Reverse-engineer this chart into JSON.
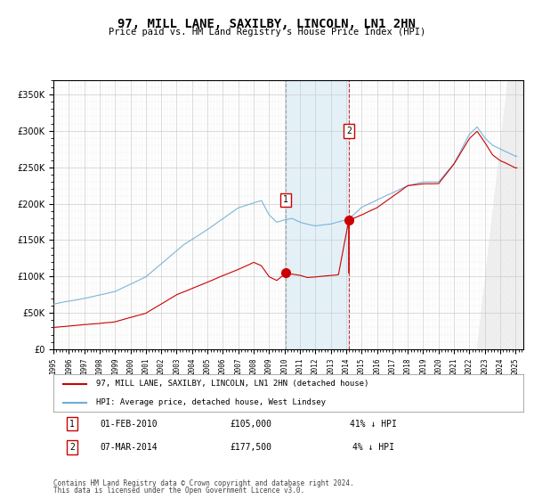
{
  "title": "97, MILL LANE, SAXILBY, LINCOLN, LN1 2HN",
  "subtitle": "Price paid vs. HM Land Registry's House Price Index (HPI)",
  "hpi_color": "#6baed6",
  "price_color": "#cc0000",
  "purchase1_date": 2010.083,
  "purchase1_price": 105000,
  "purchase1_label": "1",
  "purchase2_date": 2014.167,
  "purchase2_price": 177500,
  "purchase2_label": "2",
  "shade_start": 2010.083,
  "shade_end": 2014.167,
  "ylim": [
    0,
    370000
  ],
  "xlim_start": 1995.0,
  "xlim_end": 2025.5,
  "yticks": [
    0,
    50000,
    100000,
    150000,
    200000,
    250000,
    300000,
    350000
  ],
  "footer_line1": "Contains HM Land Registry data © Crown copyright and database right 2024.",
  "footer_line2": "This data is licensed under the Open Government Licence v3.0.",
  "legend1_label": "97, MILL LANE, SAXILBY, LINCOLN, LN1 2HN (detached house)",
  "legend2_label": "HPI: Average price, detached house, West Lindsey",
  "ann1_date": "01-FEB-2010",
  "ann1_price": "£105,000",
  "ann1_hpi": "41% ↓ HPI",
  "ann2_date": "07-MAR-2014",
  "ann2_price": "£177,500",
  "ann2_hpi": "4% ↓ HPI"
}
